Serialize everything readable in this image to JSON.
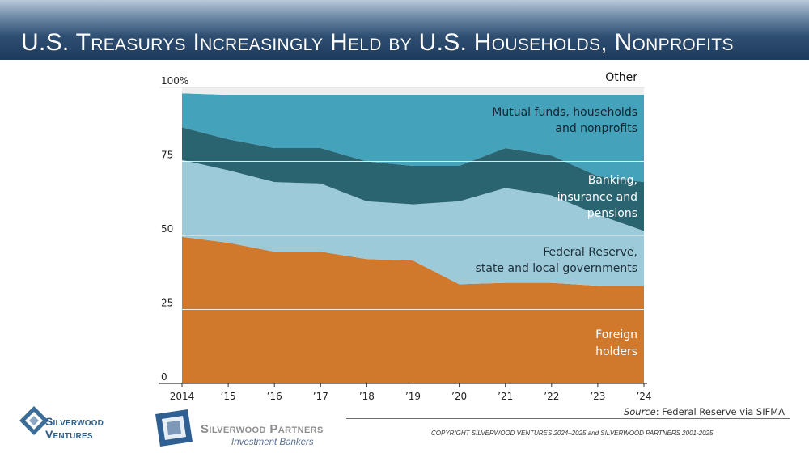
{
  "slide": {
    "title": "U.S. Treasurys Increasingly Held by U.S. Households, Nonprofits",
    "source_prefix": "Source",
    "source_rest": ": Federal Reserve via SIFMA",
    "copyright": "COPYRIGHT SILVERWOOD VENTURES 2024–2025 and SILVERWOOD PARTNERS 2001-2025",
    "logo_ventures_line1": "Silverwood",
    "logo_ventures_line2": "Ventures",
    "logo_partners_line1": "Silverwood Partners",
    "logo_partners_line2": "Investment Bankers",
    "colors": {
      "title_bar": "#23436a",
      "foreign": "#d0782c",
      "federal": "#9dcad9",
      "banking": "#2a6471",
      "mutual": "#45a2bb",
      "other": "#eeeeee"
    }
  },
  "chart_data": {
    "type": "area",
    "stacked": true,
    "percent": true,
    "categories": [
      "2014",
      "’15",
      "’16",
      "’17",
      "’18",
      "’19",
      "’20",
      "’21",
      "’22",
      "’23",
      "’24"
    ],
    "ylim": [
      0,
      100
    ],
    "yticks": [
      {
        "value": 0,
        "label": "0"
      },
      {
        "value": 25,
        "label": "25"
      },
      {
        "value": 50,
        "label": "50"
      },
      {
        "value": 75,
        "label": "75"
      },
      {
        "value": 100,
        "label": "100%"
      }
    ],
    "series": [
      {
        "name": "Foreign holders",
        "label_lines": [
          "Foreign",
          "holders"
        ],
        "color": "#d0782c",
        "values": [
          49.5,
          47.5,
          44.5,
          44.5,
          42.0,
          41.5,
          33.5,
          34.0,
          34.0,
          33.0,
          33.0
        ]
      },
      {
        "name": "Federal Reserve, state and local governments",
        "label_lines": [
          "Federal Reserve,",
          "state and local governments"
        ],
        "color": "#9dcad9",
        "values": [
          26.0,
          24.5,
          23.5,
          23.0,
          19.5,
          19.0,
          28.0,
          32.0,
          29.5,
          24.0,
          18.5
        ]
      },
      {
        "name": "Banking, insurance and pensions",
        "label_lines": [
          "Banking,",
          "insurance and",
          "pensions"
        ],
        "color": "#2a6471",
        "values": [
          11.0,
          10.5,
          11.5,
          12.0,
          13.5,
          13.0,
          12.0,
          13.5,
          13.5,
          13.0,
          16.5
        ]
      },
      {
        "name": "Mutual funds, households and nonprofits",
        "label_lines": [
          "Mutual funds, households",
          "and nonprofits"
        ],
        "color": "#45a2bb",
        "values": [
          11.5,
          15.0,
          18.0,
          18.0,
          22.5,
          24.0,
          24.0,
          18.0,
          20.5,
          27.5,
          29.5
        ]
      },
      {
        "name": "Other",
        "label_lines": [
          "Other"
        ],
        "color": "#eeeeee",
        "values": [
          2.0,
          2.5,
          2.5,
          2.5,
          2.5,
          2.5,
          2.5,
          2.5,
          2.5,
          2.5,
          2.5
        ]
      }
    ]
  }
}
